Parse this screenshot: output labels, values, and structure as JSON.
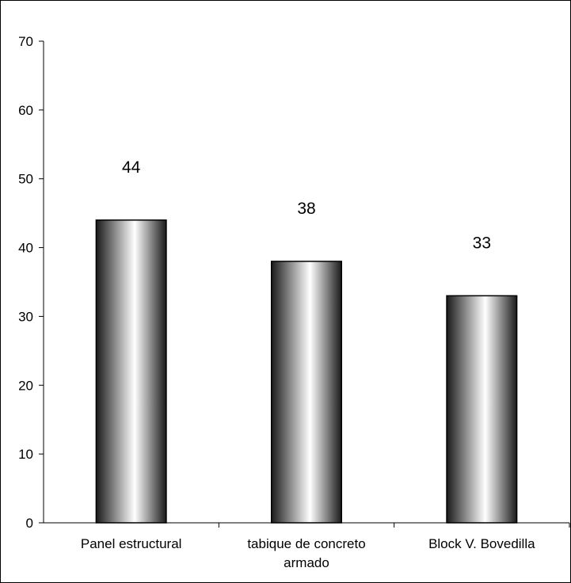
{
  "chart_data": {
    "type": "bar",
    "title": "",
    "xlabel": "",
    "ylabel": "",
    "categories": [
      "Panel estructural",
      "tabique de concreto armado",
      "Block V. Bovedilla"
    ],
    "category_label_lines": [
      [
        "Panel estructural"
      ],
      [
        "tabique de concreto",
        "armado"
      ],
      [
        "Block V. Bovedilla"
      ]
    ],
    "values": [
      44,
      38,
      33
    ],
    "data_labels": [
      "44",
      "38",
      "33"
    ],
    "ylim": [
      0,
      70
    ],
    "yticks": [
      0,
      10,
      20,
      30,
      40,
      50,
      60,
      70
    ],
    "ytick_labels": [
      "0",
      "10",
      "20",
      "30",
      "40",
      "50",
      "60",
      "70"
    ],
    "grid": false,
    "legend": "none",
    "colors": {
      "bar_dark": "#1a1a1a",
      "bar_light": "#ffffff",
      "axis": "#000000"
    }
  }
}
